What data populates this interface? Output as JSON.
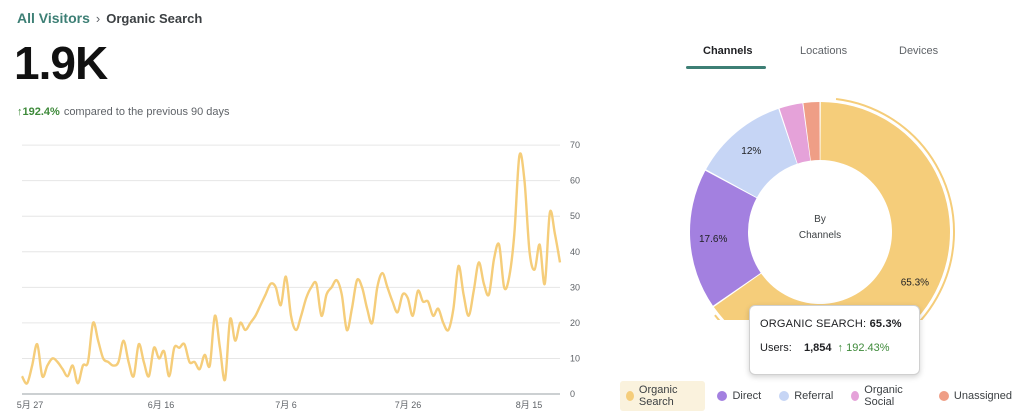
{
  "breadcrumb": {
    "root": "All Visitors",
    "separator": "›",
    "current": "Organic Search"
  },
  "summary": {
    "value": "1.9K",
    "arrow": "↑",
    "change": "192.4%",
    "comparison": "compared to the previous 90 days"
  },
  "chart_data": {
    "type": "line",
    "x_tick_labels": [
      "5月 27",
      "6月 16",
      "7月 6",
      "7月 26",
      "8月 15"
    ],
    "y_ticks": [
      0,
      10,
      20,
      30,
      40,
      50,
      60,
      70
    ],
    "ylim": [
      0,
      72
    ],
    "grid": true,
    "series": [
      {
        "color": "#f5cd7a",
        "values": [
          5,
          3,
          8,
          14,
          5,
          8,
          10,
          9,
          7,
          5,
          8,
          3,
          8,
          9,
          20,
          15,
          10,
          9,
          8,
          9,
          15,
          9,
          5,
          14,
          9,
          5,
          13,
          10,
          12,
          5,
          13,
          13,
          14,
          9,
          9,
          7,
          11,
          8,
          22,
          13,
          4,
          21,
          15,
          20,
          18,
          20,
          22,
          25,
          28,
          31,
          30,
          25,
          33,
          22,
          18,
          22,
          27,
          30,
          31,
          22,
          28,
          30,
          32,
          28,
          18,
          24,
          32,
          30,
          24,
          20,
          30,
          34,
          30,
          26,
          23,
          28,
          27,
          22,
          29,
          26,
          26,
          22,
          24,
          20,
          18,
          24,
          36,
          28,
          22,
          29,
          37,
          31,
          28,
          38,
          42,
          30,
          33,
          45,
          67,
          60,
          40,
          35,
          42,
          31,
          51,
          45,
          37
        ]
      }
    ]
  },
  "tabs": [
    {
      "label": "Channels",
      "active": true
    },
    {
      "label": "Locations",
      "active": false
    },
    {
      "label": "Devices",
      "active": false
    }
  ],
  "donut": {
    "center_line1": "By",
    "center_line2": "Channels",
    "slices": [
      {
        "name": "Organic Search",
        "value": 65.3,
        "label": "65.3%",
        "color": "#f5cd7a",
        "selected": true
      },
      {
        "name": "Direct",
        "value": 17.6,
        "label": "17.6%",
        "color": "#a380e0",
        "selected": false
      },
      {
        "name": "Referral",
        "value": 12,
        "label": "12%",
        "color": "#c6d5f5",
        "selected": false
      },
      {
        "name": "Organic Social",
        "value": 3,
        "label": "",
        "color": "#e5a2d9",
        "selected": false
      },
      {
        "name": "Unassigned",
        "value": 2.1,
        "label": "",
        "color": "#ef9e86",
        "selected": false
      }
    ]
  },
  "tooltip": {
    "channel": "ORGANIC SEARCH:",
    "percent": "65.3%",
    "users_label": "Users:",
    "users_value": "1,854",
    "change": "↑ 192.43%"
  }
}
